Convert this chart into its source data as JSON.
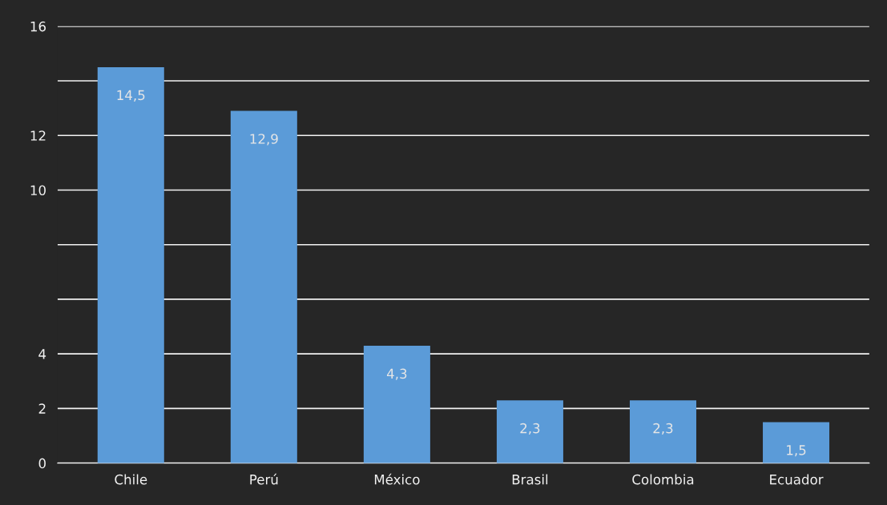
{
  "chart_data": {
    "type": "bar",
    "categories": [
      "Chile",
      "Perú",
      "México",
      "Brasil",
      "Colombia",
      "Ecuador"
    ],
    "values": [
      14.5,
      12.9,
      4.3,
      2.3,
      2.3,
      1.5
    ],
    "value_labels": [
      "14,5",
      "12,9",
      "4,3",
      "2,3",
      "2,3",
      "1,5"
    ],
    "color": "#5b9bd8",
    "ylim": [
      0,
      16
    ],
    "yticks": [
      0,
      2,
      4,
      {
        "value": 6,
        "label": null
      },
      {
        "value": 8,
        "label": null
      },
      10,
      12,
      {
        "value": 14,
        "label": null
      },
      16
    ],
    "grid": "y"
  }
}
